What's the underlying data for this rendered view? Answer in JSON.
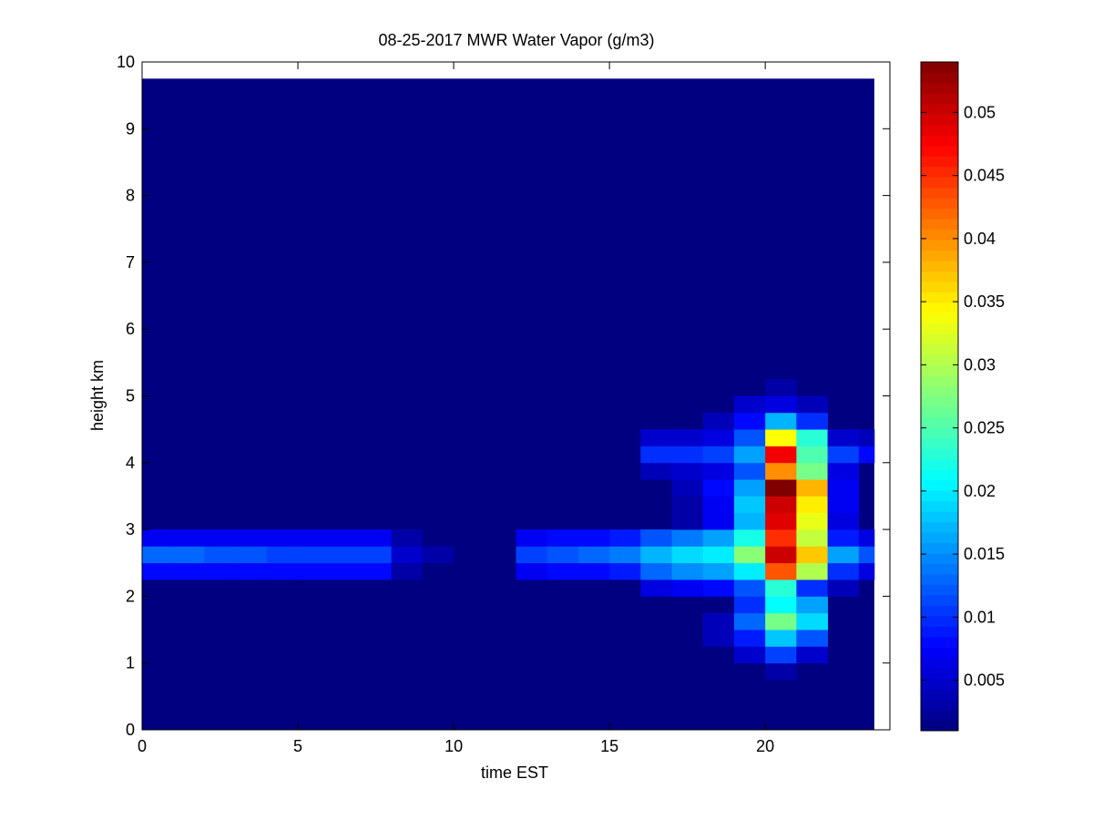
{
  "chart_data": {
    "type": "heatmap",
    "title": "08-25-2017 MWR Water Vapor (g/m3)",
    "xlabel": "time EST",
    "ylabel": "height km",
    "xlim": [
      0,
      24
    ],
    "ylim": [
      0,
      10
    ],
    "x_ticks": [
      0,
      5,
      10,
      15,
      20
    ],
    "y_ticks": [
      0,
      1,
      2,
      3,
      4,
      5,
      6,
      7,
      8,
      9,
      10
    ],
    "colormap": "jet",
    "colorbar": {
      "range": [
        0.001,
        0.054
      ],
      "ticks": [
        0.005,
        0.01,
        0.015,
        0.02,
        0.025,
        0.03,
        0.035,
        0.04,
        0.045,
        0.05
      ],
      "tick_labels": [
        "0.005",
        "0.01",
        "0.015",
        "0.02",
        "0.025",
        "0.03",
        "0.035",
        "0.04",
        "0.045",
        "0.05"
      ]
    },
    "grid": {
      "x_start": 0,
      "x_step": 1,
      "x_count": 24,
      "y_start": 0,
      "y_step": 0.25,
      "y_count": 39,
      "note_background": 0.001
    },
    "columns": [
      {
        "x": 0,
        "cells": [
          [
            2.25,
            0.008
          ],
          [
            2.5,
            0.013
          ],
          [
            2.75,
            0.007
          ]
        ]
      },
      {
        "x": 1,
        "cells": [
          [
            2.25,
            0.008
          ],
          [
            2.5,
            0.013
          ],
          [
            2.75,
            0.007
          ]
        ]
      },
      {
        "x": 2,
        "cells": [
          [
            2.25,
            0.008
          ],
          [
            2.5,
            0.012
          ],
          [
            2.75,
            0.007
          ]
        ]
      },
      {
        "x": 3,
        "cells": [
          [
            2.25,
            0.008
          ],
          [
            2.5,
            0.012
          ],
          [
            2.75,
            0.007
          ]
        ]
      },
      {
        "x": 4,
        "cells": [
          [
            2.25,
            0.008
          ],
          [
            2.5,
            0.011
          ],
          [
            2.75,
            0.007
          ]
        ]
      },
      {
        "x": 5,
        "cells": [
          [
            2.25,
            0.008
          ],
          [
            2.5,
            0.011
          ],
          [
            2.75,
            0.007
          ]
        ]
      },
      {
        "x": 6,
        "cells": [
          [
            2.25,
            0.008
          ],
          [
            2.5,
            0.011
          ],
          [
            2.75,
            0.007
          ]
        ]
      },
      {
        "x": 7,
        "cells": [
          [
            2.25,
            0.008
          ],
          [
            2.5,
            0.011
          ],
          [
            2.75,
            0.007
          ]
        ]
      },
      {
        "x": 8,
        "cells": [
          [
            2.25,
            0.003
          ],
          [
            2.5,
            0.005
          ],
          [
            2.75,
            0.003
          ]
        ]
      },
      {
        "x": 9,
        "cells": [
          [
            2.5,
            0.003
          ]
        ]
      },
      {
        "x": 12,
        "cells": [
          [
            2.25,
            0.007
          ],
          [
            2.5,
            0.011
          ],
          [
            2.75,
            0.007
          ]
        ]
      },
      {
        "x": 13,
        "cells": [
          [
            2.25,
            0.008
          ],
          [
            2.5,
            0.012
          ],
          [
            2.75,
            0.008
          ]
        ]
      },
      {
        "x": 14,
        "cells": [
          [
            2.25,
            0.008
          ],
          [
            2.5,
            0.013
          ],
          [
            2.75,
            0.008
          ]
        ]
      },
      {
        "x": 15,
        "cells": [
          [
            2.25,
            0.009
          ],
          [
            2.5,
            0.014
          ],
          [
            2.75,
            0.009
          ]
        ]
      },
      {
        "x": 16,
        "cells": [
          [
            2.0,
            0.006
          ],
          [
            2.25,
            0.013
          ],
          [
            2.5,
            0.017
          ],
          [
            2.75,
            0.012
          ],
          [
            3.75,
            0.004
          ],
          [
            4.0,
            0.01
          ],
          [
            4.25,
            0.005
          ]
        ]
      },
      {
        "x": 17,
        "cells": [
          [
            2.0,
            0.007
          ],
          [
            2.25,
            0.015
          ],
          [
            2.5,
            0.019
          ],
          [
            2.75,
            0.014
          ],
          [
            3.0,
            0.003
          ],
          [
            3.25,
            0.003
          ],
          [
            3.5,
            0.004
          ],
          [
            3.75,
            0.005
          ],
          [
            4.0,
            0.01
          ],
          [
            4.25,
            0.005
          ]
        ]
      },
      {
        "x": 18,
        "cells": [
          [
            1.25,
            0.004
          ],
          [
            1.5,
            0.004
          ],
          [
            2.0,
            0.008
          ],
          [
            2.25,
            0.016
          ],
          [
            2.5,
            0.02
          ],
          [
            2.75,
            0.016
          ],
          [
            3.0,
            0.007
          ],
          [
            3.25,
            0.007
          ],
          [
            3.5,
            0.008
          ],
          [
            3.75,
            0.006
          ],
          [
            4.0,
            0.011
          ],
          [
            4.25,
            0.006
          ],
          [
            4.5,
            0.004
          ]
        ]
      },
      {
        "x": 19,
        "cells": [
          [
            1.0,
            0.005
          ],
          [
            1.25,
            0.009
          ],
          [
            1.5,
            0.013
          ],
          [
            1.75,
            0.01
          ],
          [
            2.0,
            0.012
          ],
          [
            2.25,
            0.02
          ],
          [
            2.5,
            0.028
          ],
          [
            2.75,
            0.022
          ],
          [
            3.0,
            0.017
          ],
          [
            3.25,
            0.018
          ],
          [
            3.5,
            0.016
          ],
          [
            3.75,
            0.012
          ],
          [
            4.0,
            0.016
          ],
          [
            4.25,
            0.012
          ],
          [
            4.5,
            0.008
          ],
          [
            4.75,
            0.005
          ]
        ]
      },
      {
        "x": 20,
        "cells": [
          [
            0.75,
            0.003
          ],
          [
            1.0,
            0.011
          ],
          [
            1.25,
            0.018
          ],
          [
            1.5,
            0.027
          ],
          [
            1.75,
            0.021
          ],
          [
            2.0,
            0.023
          ],
          [
            2.25,
            0.043
          ],
          [
            2.5,
            0.05
          ],
          [
            2.75,
            0.045
          ],
          [
            3.0,
            0.049
          ],
          [
            3.25,
            0.05
          ],
          [
            3.5,
            0.054
          ],
          [
            3.75,
            0.04
          ],
          [
            4.0,
            0.048
          ],
          [
            4.25,
            0.034
          ],
          [
            4.5,
            0.017
          ],
          [
            4.75,
            0.006
          ],
          [
            5.0,
            0.003
          ]
        ]
      },
      {
        "x": 21,
        "cells": [
          [
            1.0,
            0.005
          ],
          [
            1.25,
            0.012
          ],
          [
            1.5,
            0.019
          ],
          [
            1.75,
            0.016
          ],
          [
            2.0,
            0.01
          ],
          [
            2.25,
            0.03
          ],
          [
            2.5,
            0.037
          ],
          [
            2.75,
            0.031
          ],
          [
            3.0,
            0.033
          ],
          [
            3.25,
            0.035
          ],
          [
            3.5,
            0.038
          ],
          [
            3.75,
            0.027
          ],
          [
            4.0,
            0.025
          ],
          [
            4.25,
            0.023
          ],
          [
            4.5,
            0.01
          ],
          [
            4.75,
            0.004
          ]
        ]
      },
      {
        "x": 22,
        "cells": [
          [
            2.0,
            0.004
          ],
          [
            2.25,
            0.01
          ],
          [
            2.5,
            0.016
          ],
          [
            2.75,
            0.009
          ],
          [
            3.0,
            0.006
          ],
          [
            3.25,
            0.007
          ],
          [
            3.5,
            0.007
          ],
          [
            3.75,
            0.006
          ],
          [
            4.0,
            0.011
          ],
          [
            4.25,
            0.005
          ]
        ]
      },
      {
        "x": 23,
        "cells": [
          [
            2.25,
            0.006
          ],
          [
            2.5,
            0.012
          ],
          [
            2.75,
            0.006
          ],
          [
            4.0,
            0.008
          ],
          [
            4.25,
            0.004
          ]
        ]
      }
    ]
  }
}
